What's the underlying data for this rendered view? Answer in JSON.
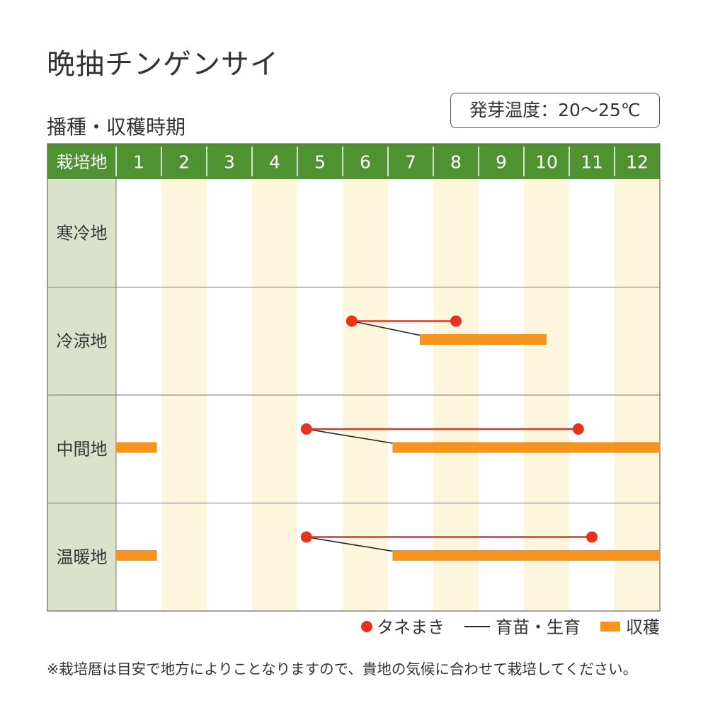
{
  "title": "晩抽チンゲンサイ",
  "subtitle": "播種・収穫時期",
  "germination_temp": "発芽温度：20〜25℃",
  "legend": {
    "sowing": "タネまき",
    "seedling": "育苗・生育",
    "harvest": "収穫"
  },
  "note": "※栽培暦は目安で地方によりことなりますので、貴地の気候に合わせて栽培してください。",
  "colors": {
    "header_bg": "#4f9232",
    "region_bg": "#dae2cb",
    "stripe": "#fdf6dc",
    "sowing": "#e8321e",
    "seedling_line": "#222222",
    "harvest": "#f7941d"
  },
  "chart_data": {
    "type": "gantt",
    "corner_label": "栽培地",
    "months": [
      "1",
      "2",
      "3",
      "4",
      "5",
      "6",
      "7",
      "8",
      "9",
      "10",
      "11",
      "12"
    ],
    "regions": [
      {
        "name": "寒冷地",
        "schedule": []
      },
      {
        "name": "冷涼地",
        "schedule": [
          {
            "sowing": [
              6.2,
              8.5
            ],
            "seedling_from": 6.2,
            "harvest": [
              [
                7.7,
                10.5
              ]
            ]
          }
        ]
      },
      {
        "name": "中間地",
        "schedule": [
          {
            "sowing": [
              5.2,
              11.2
            ],
            "seedling_from": 5.2,
            "harvest": [
              [
                7.1,
                13.0
              ],
              [
                1.0,
                1.9
              ]
            ]
          }
        ]
      },
      {
        "name": "温暖地",
        "schedule": [
          {
            "sowing": [
              5.2,
              11.5
            ],
            "seedling_from": 5.2,
            "harvest": [
              [
                7.1,
                13.0
              ],
              [
                1.0,
                1.9
              ]
            ]
          }
        ]
      }
    ]
  }
}
